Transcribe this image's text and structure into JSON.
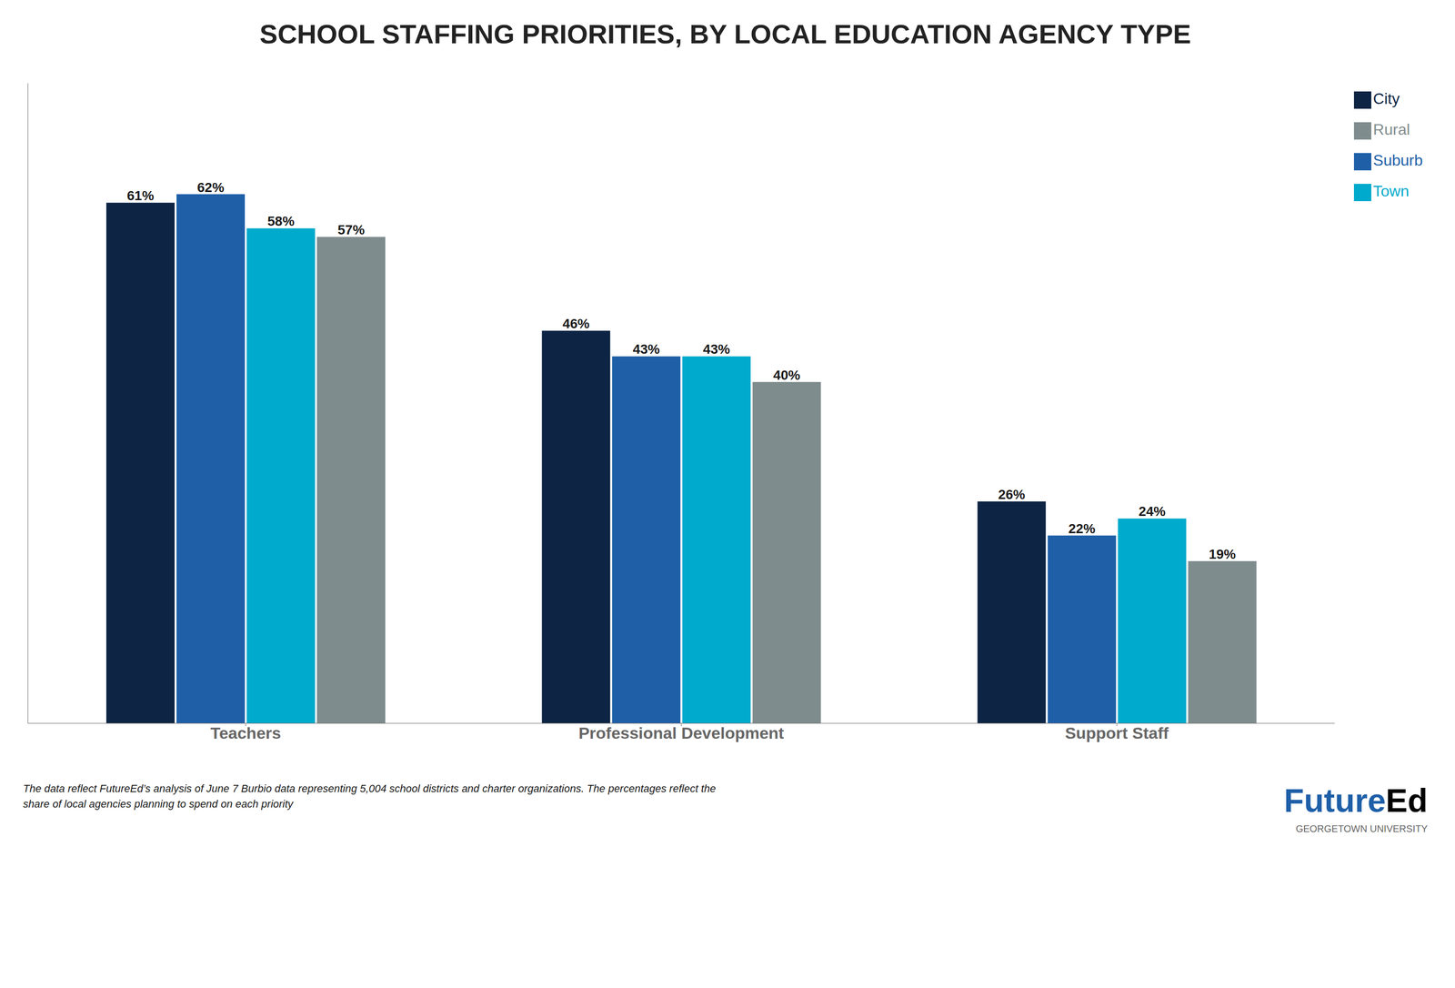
{
  "chart_data": {
    "type": "bar",
    "title": "SCHOOL STAFFING PRIORITIES, BY LOCAL EDUCATION AGENCY TYPE",
    "categories": [
      "Teachers",
      "Professional Development",
      "Support Staff"
    ],
    "series": [
      {
        "name": "City",
        "color": "#0d2444",
        "values": [
          61,
          46,
          26
        ],
        "value_labels": [
          "61%",
          "46%",
          "26%"
        ]
      },
      {
        "name": "Suburb",
        "color": "#1e5fa8",
        "values": [
          62,
          43,
          22
        ],
        "value_labels": [
          "62%",
          "43%",
          "22%"
        ]
      },
      {
        "name": "Town",
        "color": "#00aacc",
        "values": [
          58,
          43,
          24
        ],
        "value_labels": [
          "58%",
          "43%",
          "24%"
        ]
      },
      {
        "name": "Rural",
        "color": "#7f8c8d",
        "values": [
          57,
          40,
          19
        ],
        "value_labels": [
          "57%",
          "40%",
          "19%"
        ]
      }
    ],
    "ylim": [
      0,
      75
    ],
    "grid": false,
    "legend": "upper right",
    "data_labels": true,
    "tick_labels": "x",
    "annotations": [
      {
        "text": "The data reflect FutureEd’s analysis of June 7 Burbio data representing 5,004 school districts and charter organizations. The percentages reflect the\nshare of local agencies planning to spend on each priority",
        "color": "#1a1a1a"
      },
      {
        "text": "Future",
        "color": "#1e5fa8"
      },
      {
        "text": "Ed",
        "color": "#000000"
      },
      {
        "text": "GEORGETOWN UNIVERSITY",
        "color": "#666666"
      }
    ]
  }
}
